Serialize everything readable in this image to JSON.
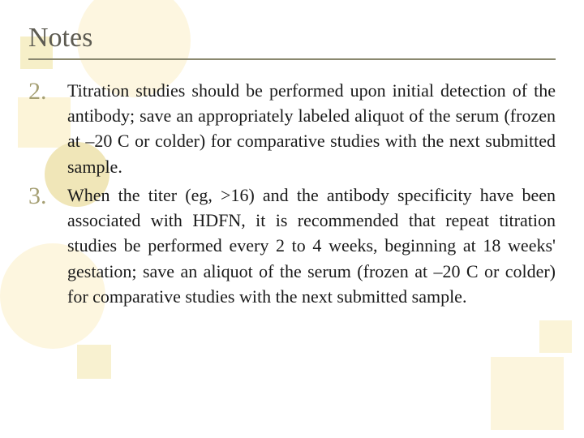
{
  "header": {
    "title": "Notes"
  },
  "list": {
    "items": [
      {
        "number": "2.",
        "text": "Titration studies should be performed upon initial detection of the antibody; save an appropriately labeled aliquot of the serum (frozen at –20 C or colder) for comparative studies with the next submitted sample."
      },
      {
        "number": "3.",
        "text": "When the titer (eg, >16) and the antibody specificity have been associated with HDFN, it is recommended that repeat titration studies be performed every 2 to 4 weeks, beginning at 18 weeks' gestation; save an aliquot of the serum (frozen at –20 C or colder) for comparative studies with the next submitted sample."
      }
    ]
  },
  "styling": {
    "bg_shapes": {
      "circle_fill_light": "#fdf6df",
      "circle_fill_mid": "#f0e6b8",
      "square_fill": "#f8f1d0"
    },
    "title_color": "#5d5b52",
    "title_fontsize": 34,
    "divider_color": "#8a886f",
    "number_color": "#a59f73",
    "number_fontsize": 30,
    "body_color": "#1a1a1a",
    "body_fontsize": 22,
    "font_family": "Georgia, serif",
    "background_color": "#ffffff"
  }
}
